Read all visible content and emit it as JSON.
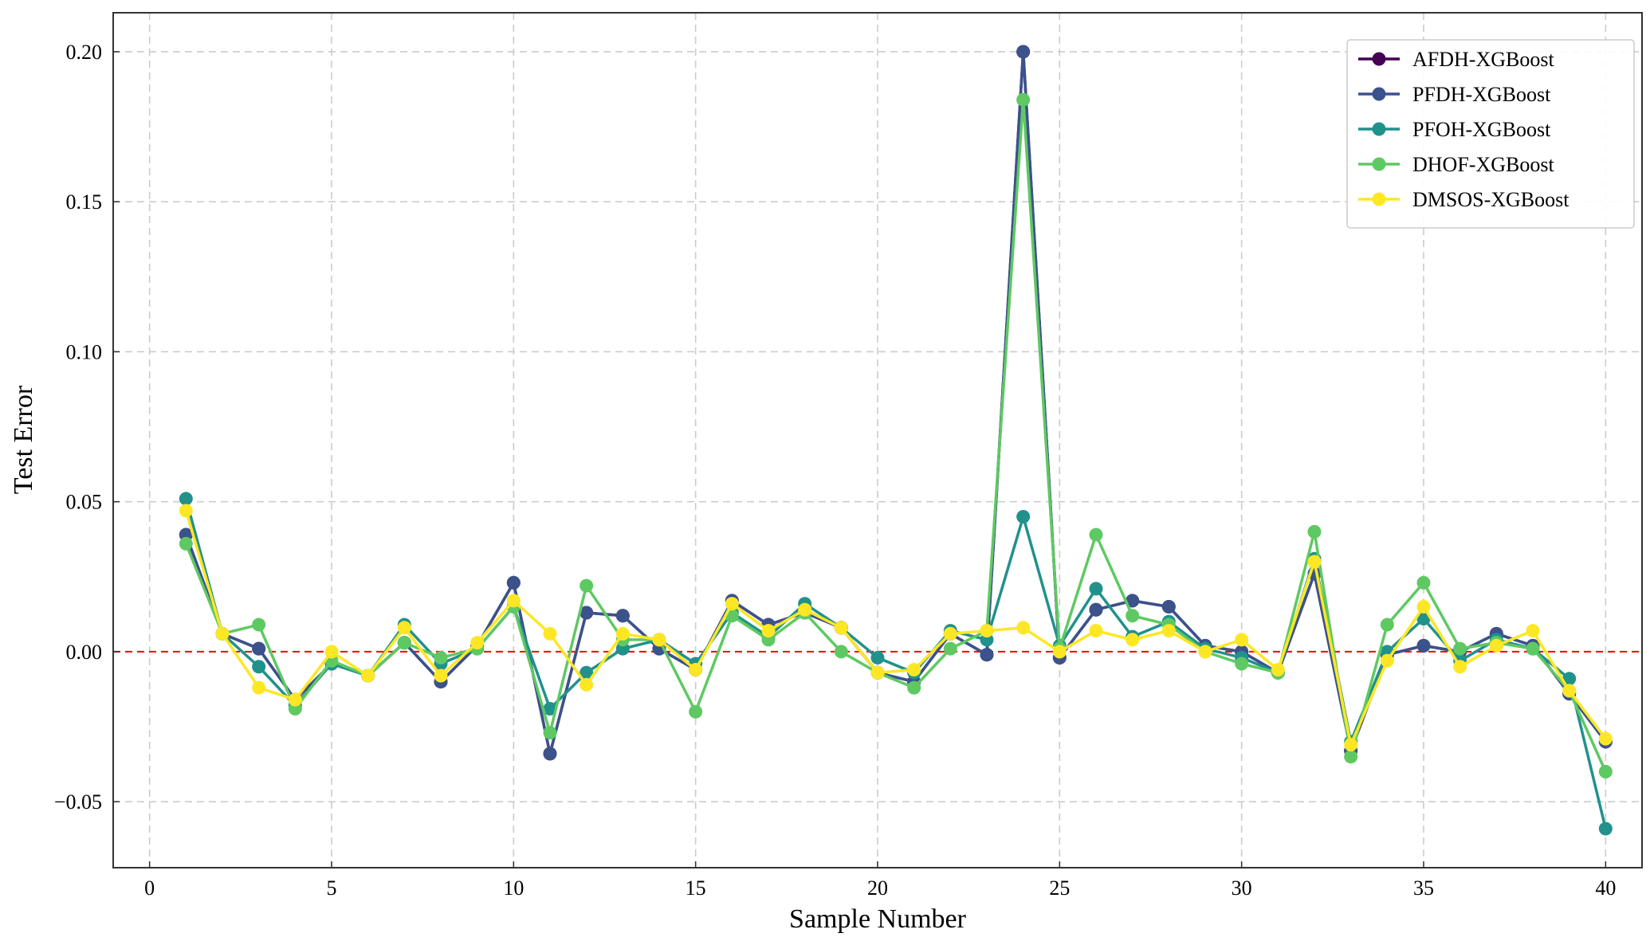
{
  "chart_data": {
    "type": "line",
    "title": "",
    "xlabel": "Sample Number",
    "ylabel": "Test Error",
    "xlim": [
      -1,
      41
    ],
    "ylim": [
      -0.072,
      0.213
    ],
    "x_ticks": [
      0,
      5,
      10,
      15,
      20,
      25,
      30,
      35,
      40
    ],
    "x_tick_labels": [
      "0",
      "5",
      "10",
      "15",
      "20",
      "25",
      "30",
      "35",
      "40"
    ],
    "y_ticks": [
      -0.05,
      0.0,
      0.05,
      0.1,
      0.15,
      0.2
    ],
    "y_tick_labels": [
      "−0.05",
      "0.00",
      "0.05",
      "0.10",
      "0.15",
      "0.20"
    ],
    "grid": true,
    "legend_position": "top-right",
    "reference_line": {
      "y": 0.0,
      "style": "dashed",
      "color": "#ff0000"
    },
    "x": [
      1,
      2,
      3,
      4,
      5,
      6,
      7,
      8,
      9,
      10,
      11,
      12,
      13,
      14,
      15,
      16,
      17,
      18,
      19,
      20,
      21,
      22,
      23,
      24,
      25,
      26,
      27,
      28,
      29,
      30,
      31,
      32,
      33,
      34,
      35,
      36,
      37,
      38,
      39,
      40
    ],
    "series": [
      {
        "name": "AFDH-XGBoost",
        "color": "#440154",
        "values": [
          0.039,
          0.006,
          0.001,
          -0.016,
          -0.004,
          -0.008,
          0.003,
          -0.01,
          0.002,
          0.023,
          -0.034,
          0.013,
          0.012,
          0.001,
          -0.006,
          0.017,
          0.009,
          0.013,
          0.008,
          -0.007,
          -0.01,
          0.006,
          -0.001,
          0.2,
          -0.002,
          0.014,
          0.017,
          0.015,
          0.002,
          0.0,
          -0.007,
          0.026,
          -0.033,
          -0.001,
          0.002,
          0.0,
          0.006,
          0.002,
          -0.014,
          -0.03
        ]
      },
      {
        "name": "PFDH-XGBoost",
        "color": "#3b528b",
        "values": [
          0.039,
          0.006,
          0.001,
          -0.016,
          -0.004,
          -0.008,
          0.003,
          -0.01,
          0.002,
          0.023,
          -0.034,
          0.013,
          0.012,
          0.001,
          -0.006,
          0.017,
          0.009,
          0.013,
          0.008,
          -0.007,
          -0.01,
          0.006,
          -0.001,
          0.2,
          -0.002,
          0.014,
          0.017,
          0.015,
          0.002,
          0.0,
          -0.007,
          0.026,
          -0.033,
          -0.001,
          0.002,
          0.0,
          0.006,
          0.002,
          -0.014,
          -0.03
        ]
      },
      {
        "name": "PFOH-XGBoost",
        "color": "#21918c",
        "values": [
          0.051,
          0.006,
          -0.005,
          -0.018,
          -0.004,
          -0.008,
          0.009,
          -0.004,
          0.001,
          0.015,
          -0.019,
          -0.007,
          0.001,
          0.004,
          -0.004,
          0.013,
          0.005,
          0.016,
          0.008,
          -0.002,
          -0.007,
          0.007,
          0.004,
          0.045,
          0.002,
          0.021,
          0.005,
          0.01,
          0.001,
          -0.002,
          -0.007,
          0.031,
          -0.03,
          0.0,
          0.011,
          -0.003,
          0.004,
          0.001,
          -0.009,
          -0.059
        ]
      },
      {
        "name": "DHOF-XGBoost",
        "color": "#5ec962",
        "values": [
          0.036,
          0.006,
          0.009,
          -0.019,
          -0.003,
          -0.008,
          0.003,
          -0.002,
          0.001,
          0.015,
          -0.027,
          0.022,
          0.004,
          0.004,
          -0.02,
          0.012,
          0.004,
          0.013,
          0.0,
          -0.007,
          -0.012,
          0.001,
          0.007,
          0.184,
          0.001,
          0.039,
          0.012,
          0.009,
          0.0,
          -0.004,
          -0.007,
          0.04,
          -0.035,
          0.009,
          0.023,
          0.001,
          0.003,
          0.001,
          -0.013,
          -0.04
        ]
      },
      {
        "name": "DMSOS-XGBoost",
        "color": "#fde725",
        "values": [
          0.047,
          0.006,
          -0.012,
          -0.016,
          0.0,
          -0.008,
          0.008,
          -0.008,
          0.003,
          0.017,
          0.006,
          -0.011,
          0.006,
          0.004,
          -0.006,
          0.016,
          0.007,
          0.014,
          0.008,
          -0.007,
          -0.006,
          0.006,
          0.007,
          0.008,
          0.0,
          0.007,
          0.004,
          0.007,
          0.0,
          0.004,
          -0.006,
          0.03,
          -0.031,
          -0.003,
          0.015,
          -0.005,
          0.002,
          0.007,
          -0.013,
          -0.029
        ]
      }
    ]
  }
}
